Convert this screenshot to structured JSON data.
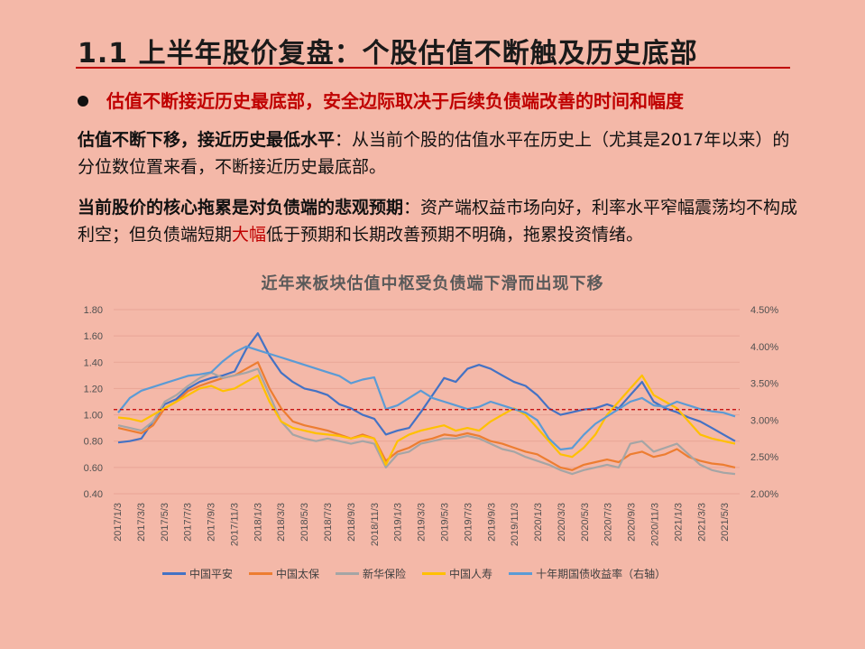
{
  "slide": {
    "title": "1.1  上半年股价复盘：个股估值不断触及历史底部",
    "bullet": "估值不断接近历史最底部，安全边际取决于后续负债端改善的时间和幅度",
    "para1_bold": "估值不断下移，接近历史最低水平",
    "para1_text": "：从当前个股的估值水平在历史上（尤其是2017年以来）的分位数位置来看，不断接近历史最底部。",
    "para2_bold": "当前股价的核心拖累是对负债端的悲观预期",
    "para2_text_a": "：资产端权益市场向好，利率水平窄幅震荡均不构成利空；但负债端短期",
    "para2_red": "大幅",
    "para2_text_b": "低于预期和长期改善预期不明确，拖累投资情绪。",
    "colors": {
      "background": "#F4B8A8",
      "accent": "#C00000"
    }
  },
  "chart_data": {
    "type": "line",
    "title": "近年来板块估值中枢受负债端下滑而出现下移",
    "x_ticks": [
      "2017/1/3",
      "2017/3/3",
      "2017/5/3",
      "2017/7/3",
      "2017/9/3",
      "2017/11/3",
      "2018/1/3",
      "2018/3/3",
      "2018/5/3",
      "2018/7/3",
      "2018/9/3",
      "2018/11/3",
      "2019/1/3",
      "2019/3/3",
      "2019/5/3",
      "2019/7/3",
      "2019/9/3",
      "2019/11/3",
      "2020/1/3",
      "2020/3/3",
      "2020/5/3",
      "2020/7/3",
      "2020/9/3",
      "2020/11/3",
      "2021/1/3",
      "2021/3/3",
      "2021/5/3"
    ],
    "y_left": {
      "min": 0.4,
      "max": 1.8,
      "step": 0.2,
      "tick_labels": [
        "0.40",
        "0.60",
        "0.80",
        "1.00",
        "1.20",
        "1.40",
        "1.60",
        "1.80"
      ]
    },
    "y_right": {
      "min": 2.0,
      "max": 4.5,
      "step": 0.5,
      "tick_labels": [
        "2.00%",
        "2.50%",
        "3.00%",
        "3.50%",
        "4.00%",
        "4.50%"
      ]
    },
    "reference_line": {
      "axis": "left",
      "value": 1.04,
      "color": "#C00000",
      "style": "dashed"
    },
    "series": [
      {
        "name": "中国平安",
        "axis": "left",
        "color": "#4472C4",
        "values": [
          0.79,
          0.8,
          0.82,
          0.95,
          1.08,
          1.12,
          1.2,
          1.25,
          1.28,
          1.3,
          1.33,
          1.5,
          1.62,
          1.45,
          1.32,
          1.25,
          1.2,
          1.18,
          1.15,
          1.08,
          1.05,
          1.0,
          0.97,
          0.85,
          0.88,
          0.9,
          1.02,
          1.15,
          1.28,
          1.25,
          1.35,
          1.38,
          1.35,
          1.3,
          1.25,
          1.22,
          1.15,
          1.05,
          1.0,
          1.02,
          1.04,
          1.05,
          1.08,
          1.05,
          1.15,
          1.25,
          1.1,
          1.05,
          1.02,
          0.98,
          0.95,
          0.9,
          0.85,
          0.8
        ]
      },
      {
        "name": "中国太保",
        "axis": "left",
        "color": "#ED7D31",
        "values": [
          0.9,
          0.88,
          0.86,
          0.92,
          1.05,
          1.1,
          1.18,
          1.22,
          1.25,
          1.28,
          1.3,
          1.35,
          1.4,
          1.2,
          1.05,
          0.95,
          0.92,
          0.9,
          0.88,
          0.85,
          0.82,
          0.85,
          0.82,
          0.65,
          0.72,
          0.75,
          0.8,
          0.82,
          0.85,
          0.84,
          0.86,
          0.84,
          0.8,
          0.78,
          0.75,
          0.72,
          0.7,
          0.65,
          0.6,
          0.58,
          0.62,
          0.64,
          0.66,
          0.64,
          0.7,
          0.72,
          0.68,
          0.7,
          0.74,
          0.68,
          0.65,
          0.63,
          0.62,
          0.6
        ]
      },
      {
        "name": "新华保险",
        "axis": "left",
        "color": "#A5A5A5",
        "values": [
          0.92,
          0.9,
          0.88,
          0.95,
          1.1,
          1.15,
          1.22,
          1.28,
          1.32,
          1.28,
          1.3,
          1.32,
          1.35,
          1.15,
          0.95,
          0.85,
          0.82,
          0.8,
          0.82,
          0.8,
          0.78,
          0.8,
          0.78,
          0.6,
          0.7,
          0.72,
          0.78,
          0.8,
          0.82,
          0.82,
          0.84,
          0.82,
          0.78,
          0.74,
          0.72,
          0.68,
          0.65,
          0.62,
          0.58,
          0.55,
          0.58,
          0.6,
          0.62,
          0.6,
          0.78,
          0.8,
          0.72,
          0.75,
          0.78,
          0.7,
          0.62,
          0.58,
          0.56,
          0.55
        ]
      },
      {
        "name": "中国人寿",
        "axis": "left",
        "color": "#FFC000",
        "values": [
          0.98,
          0.97,
          0.95,
          1.0,
          1.05,
          1.1,
          1.15,
          1.2,
          1.22,
          1.18,
          1.2,
          1.25,
          1.3,
          1.1,
          0.95,
          0.9,
          0.88,
          0.86,
          0.85,
          0.84,
          0.82,
          0.84,
          0.82,
          0.62,
          0.8,
          0.85,
          0.88,
          0.9,
          0.92,
          0.88,
          0.9,
          0.88,
          0.95,
          1.0,
          1.05,
          1.0,
          0.9,
          0.8,
          0.7,
          0.68,
          0.75,
          0.85,
          1.0,
          1.1,
          1.2,
          1.3,
          1.15,
          1.1,
          1.05,
          0.95,
          0.85,
          0.82,
          0.8,
          0.78
        ]
      },
      {
        "name": "十年期国债收益率（右轴）",
        "axis": "right",
        "color": "#5B9BD5",
        "values": [
          3.1,
          3.3,
          3.4,
          3.45,
          3.5,
          3.55,
          3.6,
          3.62,
          3.65,
          3.8,
          3.92,
          4.0,
          3.95,
          3.9,
          3.85,
          3.8,
          3.75,
          3.7,
          3.65,
          3.6,
          3.5,
          3.55,
          3.58,
          3.15,
          3.2,
          3.3,
          3.4,
          3.3,
          3.25,
          3.2,
          3.15,
          3.18,
          3.25,
          3.2,
          3.15,
          3.1,
          3.0,
          2.75,
          2.6,
          2.62,
          2.8,
          2.95,
          3.05,
          3.15,
          3.25,
          3.3,
          3.2,
          3.18,
          3.25,
          3.2,
          3.15,
          3.12,
          3.1,
          3.05
        ]
      }
    ]
  }
}
